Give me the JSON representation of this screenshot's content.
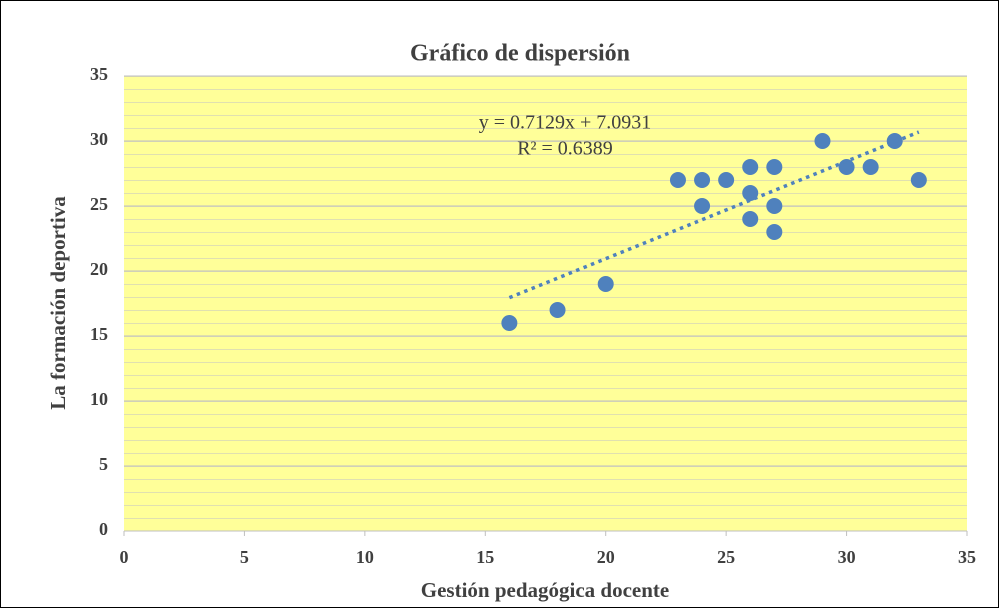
{
  "chart_data": {
    "type": "scatter",
    "title": "Gráfico de dispersión",
    "x_label": "Gestión pedagógica docente",
    "y_label": "La formación deportiva",
    "x": [
      16,
      18,
      20,
      23,
      24,
      24,
      25,
      26,
      26,
      26,
      27,
      27,
      27,
      29,
      30,
      31,
      32,
      33
    ],
    "values": [
      16,
      17,
      19,
      27,
      27,
      25,
      27,
      28,
      26,
      24,
      28,
      25,
      23,
      30,
      28,
      28,
      30,
      27
    ],
    "color": "#4f81bd",
    "background": "#ffff99",
    "xlim": [
      0,
      35
    ],
    "xticks": [
      0,
      5,
      10,
      15,
      20,
      25,
      30,
      35
    ],
    "ylim": [
      0,
      35
    ],
    "yticks": [
      0,
      5,
      10,
      15,
      20,
      25,
      30,
      35
    ],
    "grid": true,
    "minor_grid": true,
    "trendline": {
      "type": "linear",
      "equation": "y = 0.7129x + 7.0931",
      "r_squared": "R² = 0.6389"
    }
  }
}
